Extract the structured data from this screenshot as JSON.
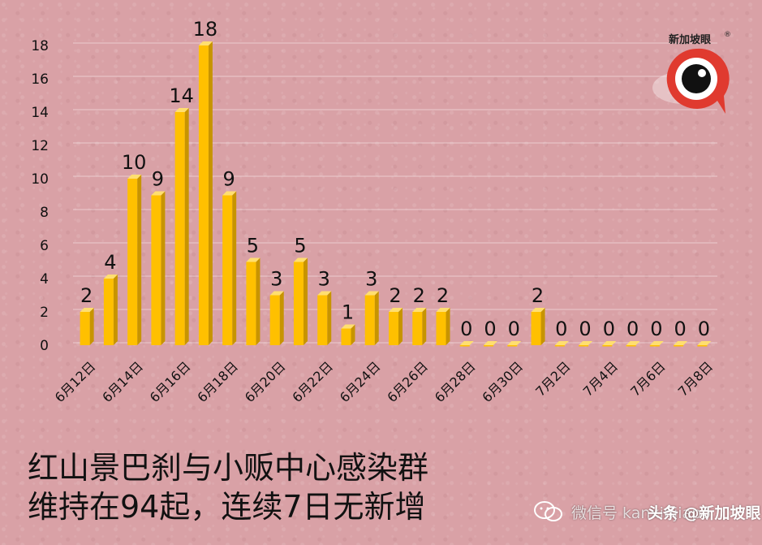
{
  "chart_data": {
    "type": "bar",
    "categories": [
      "6月12日",
      "6月13日",
      "6月14日",
      "6月15日",
      "6月16日",
      "6月17日",
      "6月18日",
      "6月19日",
      "6月20日",
      "6月21日",
      "6月22日",
      "6月23日",
      "6月24日",
      "6月25日",
      "6月26日",
      "6月27日",
      "6月28日",
      "6月29日",
      "6月30日",
      "7月1日",
      "7月2日",
      "7月3日",
      "7月4日",
      "7月5日",
      "7月6日",
      "7月7日",
      "7月8日"
    ],
    "values": [
      2,
      4,
      10,
      9,
      14,
      18,
      9,
      5,
      3,
      5,
      3,
      1,
      3,
      2,
      2,
      2,
      0,
      0,
      0,
      2,
      0,
      0,
      0,
      0,
      0,
      0,
      0
    ],
    "ylim": [
      0,
      18
    ],
    "yticks": [
      0,
      2,
      4,
      6,
      8,
      10,
      12,
      14,
      16,
      18
    ],
    "xtick_labels": [
      "6月12日",
      "6月14日",
      "6月16日",
      "6月18日",
      "6月20日",
      "6月22日",
      "6月24日",
      "6月26日",
      "6月28日",
      "6月30日",
      "7月2日",
      "7月4日",
      "7月6日",
      "7月8日"
    ],
    "data_labels": true,
    "grid": true,
    "bar_color": "#ffc000",
    "bar_side_color": "#c79400",
    "bar_top_color": "#ffdf70"
  },
  "caption": {
    "line1": "红山景巴刹与小贩中心感染群",
    "line2": "维持在94起，连续7日无新增"
  },
  "logo": {
    "text": "新加坡眼",
    "registered": "®",
    "ring_color": "#e03a2f"
  },
  "watermark": {
    "wechat": "微信号 kanxinjiapo",
    "toutiao": "头条 @新加坡眼"
  }
}
